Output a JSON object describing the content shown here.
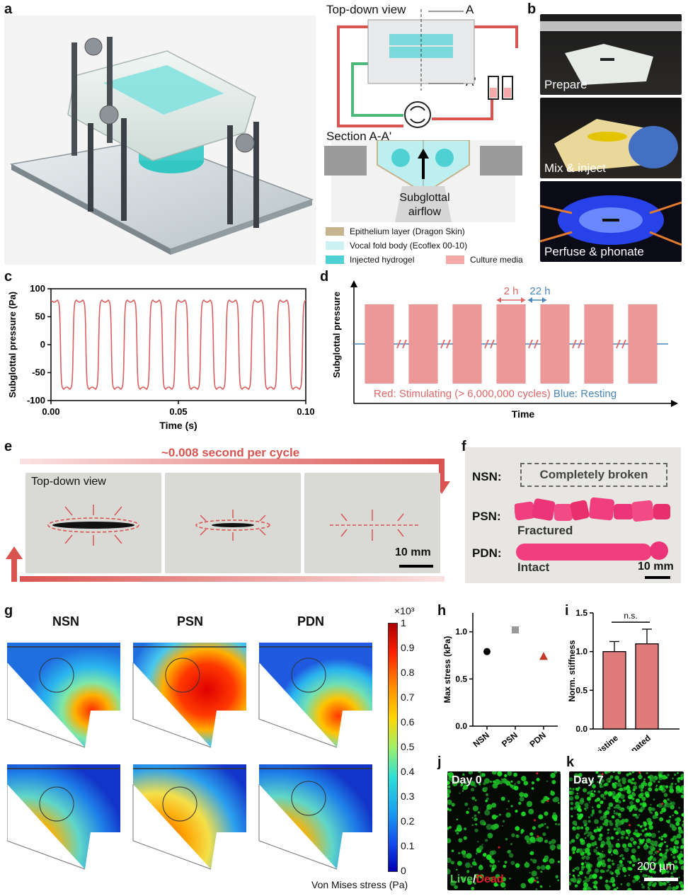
{
  "panels": {
    "a": {
      "label": "a",
      "top_title": "Top-down view",
      "marker_a": "A",
      "marker_a2": "A'",
      "section_title": "Section A-A'",
      "airflow": [
        "Subglottal",
        "airflow"
      ],
      "legend": [
        {
          "label": "Epithelium layer (Dragon Skin)",
          "color": "#c6b48e"
        },
        {
          "label": "Vocal fold body (Ecoflex 00-10)",
          "color": "#cdf2f4"
        },
        {
          "label": "Injected hydrogel",
          "color": "#4fd1d3"
        },
        {
          "label": "Culture media",
          "color": "#f6a9a9"
        }
      ]
    },
    "b": {
      "label": "b",
      "photos": [
        "Prepare",
        "Mix & inject",
        "Perfuse & phonate"
      ]
    },
    "c": {
      "label": "c"
    },
    "d": {
      "label": "d",
      "on_label": "2 h",
      "off_label": "22 h",
      "note_red": "Red: Stimulating (> 6,000,000 cycles)",
      "note_blue": "Blue: Resting"
    },
    "e": {
      "label": "e",
      "cycle_text": "~0.008 second per cycle",
      "view_label": "Top-down view",
      "scalebar": "10 mm"
    },
    "f": {
      "label": "f",
      "rows": [
        {
          "name": "NSN:",
          "state": "Completely broken"
        },
        {
          "name": "PSN:",
          "state": "Fractured"
        },
        {
          "name": "PDN:",
          "state": "Intact"
        }
      ],
      "scalebar": "10 mm"
    },
    "g": {
      "label": "g",
      "columns": [
        "NSN",
        "PSN",
        "PDN"
      ],
      "colorbar_exponent": "×10³",
      "colorbar_ticks": [
        "1",
        "0.9",
        "0.8",
        "0.7",
        "0.6",
        "0.5",
        "0.4",
        "0.3",
        "0.2",
        "0.1",
        "0"
      ],
      "colorbar_label": "Von Mises stress (Pa)"
    },
    "h": {
      "label": "h"
    },
    "i": {
      "label": "i",
      "sig": "n.s."
    },
    "j": {
      "label": "j",
      "day": "Day 0",
      "live": "Live",
      "slash": "/",
      "dead": "Dead"
    },
    "k": {
      "label": "k",
      "day": "Day 7",
      "scalebar": "200 µm"
    }
  },
  "chart_data": [
    {
      "id": "c",
      "type": "line",
      "xlabel": "Time (s)",
      "ylabel": "Subglottal pressure (Pa)",
      "xlim": [
        0,
        0.1
      ],
      "ylim": [
        -100,
        100
      ],
      "xticks": [
        "0.00",
        "0.05",
        "0.10"
      ],
      "yticks": [
        "100",
        "50",
        "0",
        "-50",
        "-100"
      ],
      "period_s": 0.01,
      "amplitude_pa": 80,
      "cycles": 10,
      "color": "#d9605f"
    },
    {
      "id": "d",
      "type": "line",
      "xlabel": "Time",
      "ylabel": "Subglottal pressure",
      "blocks": 7,
      "colors": {
        "stimulating": "#e06666",
        "resting": "#4a86b8"
      }
    },
    {
      "id": "h",
      "type": "scatter",
      "ylabel": "Max stress (kPa)",
      "categories": [
        "NSN",
        "PSN",
        "PDN"
      ],
      "values": [
        0.79,
        1.02,
        0.74
      ],
      "ylim": [
        0,
        1.2
      ],
      "yticks": [
        "0.0",
        "0.5",
        "1.0"
      ],
      "markers": [
        {
          "shape": "circle",
          "color": "#000000"
        },
        {
          "shape": "square",
          "color": "#999999"
        },
        {
          "shape": "triangle",
          "color": "#c0392b"
        }
      ]
    },
    {
      "id": "i",
      "type": "bar",
      "ylabel": "Norm. stiffness",
      "categories": [
        "Pristine",
        "Phonated"
      ],
      "values": [
        1.0,
        1.1
      ],
      "errors": [
        0.13,
        0.19
      ],
      "ylim": [
        0,
        1.5
      ],
      "yticks": [
        "0.0",
        "0.5",
        "1.0",
        "1.5"
      ],
      "color": "#e07b7b"
    }
  ]
}
